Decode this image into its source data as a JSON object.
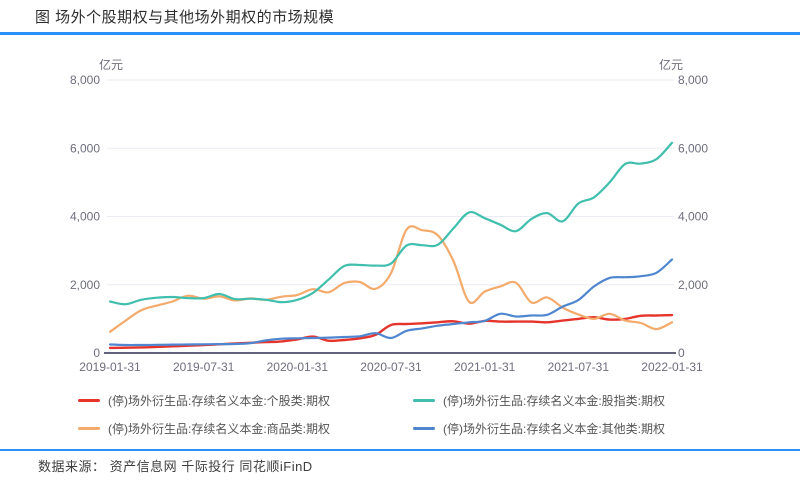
{
  "header": {
    "title": "图 场外个股期权与其他场外期权的市场规模"
  },
  "chart_data": {
    "type": "line",
    "title": "场外个股期权与其他场外期权的市场规模",
    "unit_left": "亿元",
    "unit_right": "亿元",
    "ylim": [
      0,
      8000
    ],
    "yticks": [
      0,
      2000,
      4000,
      6000,
      8000
    ],
    "ytick_labels": [
      "0",
      "2,000",
      "4,000",
      "6,000",
      "8,000"
    ],
    "grid": true,
    "legend_position": "bottom",
    "x": [
      "2019-01-31",
      "2019-02-28",
      "2019-03-31",
      "2019-04-30",
      "2019-05-31",
      "2019-06-30",
      "2019-07-31",
      "2019-08-31",
      "2019-09-30",
      "2019-10-31",
      "2019-11-30",
      "2019-12-31",
      "2020-01-31",
      "2020-02-29",
      "2020-03-31",
      "2020-04-30",
      "2020-05-31",
      "2020-06-30",
      "2020-07-31",
      "2020-08-31",
      "2020-09-30",
      "2020-10-31",
      "2020-11-30",
      "2020-12-31",
      "2021-01-31",
      "2021-02-28",
      "2021-03-31",
      "2021-04-30",
      "2021-05-31",
      "2021-06-30",
      "2021-07-31",
      "2021-08-31",
      "2021-09-30",
      "2021-10-31",
      "2021-11-30",
      "2021-12-31",
      "2022-01-31"
    ],
    "xtick_labels": [
      "2019-01-31",
      "2019-07-31",
      "2020-01-31",
      "2020-07-31",
      "2021-01-31",
      "2021-07-31",
      "2022-01-31"
    ],
    "series": [
      {
        "name": "(停)场外衍生品:存续名义本金:个股类:期权",
        "color": "#e5342b",
        "values": [
          150,
          155,
          165,
          180,
          195,
          215,
          235,
          255,
          280,
          300,
          320,
          340,
          400,
          480,
          360,
          380,
          430,
          530,
          820,
          850,
          870,
          900,
          930,
          860,
          940,
          920,
          920,
          920,
          900,
          950,
          1000,
          1050,
          980,
          1000,
          1090,
          1100,
          1110
        ]
      },
      {
        "name": "(停)场外衍生品:存续名义本金:商品类:期权",
        "color": "#f3aa6b",
        "values": [
          620,
          950,
          1250,
          1390,
          1510,
          1680,
          1590,
          1660,
          1540,
          1600,
          1560,
          1650,
          1700,
          1870,
          1780,
          2050,
          2080,
          1880,
          2340,
          3620,
          3600,
          3450,
          2700,
          1500,
          1800,
          1950,
          2060,
          1480,
          1630,
          1330,
          1130,
          1000,
          1150,
          950,
          880,
          700,
          900
        ]
      },
      {
        "name": "(停)场外衍生品:存续名义本金:股指类:期权",
        "color": "#41bfae",
        "values": [
          1510,
          1430,
          1560,
          1620,
          1640,
          1610,
          1610,
          1730,
          1580,
          1590,
          1560,
          1490,
          1560,
          1760,
          2150,
          2550,
          2580,
          2560,
          2620,
          3150,
          3160,
          3170,
          3650,
          4120,
          3950,
          3760,
          3570,
          3930,
          4100,
          3860,
          4380,
          4560,
          5000,
          5540,
          5550,
          5680,
          6160
        ]
      },
      {
        "name": "(停)场外衍生品:存续名义本金:其他类:期权",
        "color": "#4e86d0",
        "values": [
          250,
          235,
          235,
          240,
          245,
          250,
          255,
          260,
          265,
          290,
          370,
          420,
          430,
          440,
          450,
          470,
          490,
          580,
          440,
          650,
          720,
          800,
          850,
          900,
          940,
          1150,
          1070,
          1100,
          1120,
          1360,
          1550,
          1950,
          2200,
          2220,
          2250,
          2350,
          2740
        ]
      }
    ]
  },
  "legend": {
    "order": [
      0,
      2,
      1,
      3
    ]
  },
  "footer": {
    "label": "数据来源：",
    "sources": "资产信息网 千际投行 同花顺iFinD"
  },
  "colors": {
    "accent_bar": "#2a8ff7",
    "axis_line": "#62627d",
    "grid_line": "#ebebf3",
    "tick_text": "#6e6e7e",
    "legend_text": "#555555"
  }
}
